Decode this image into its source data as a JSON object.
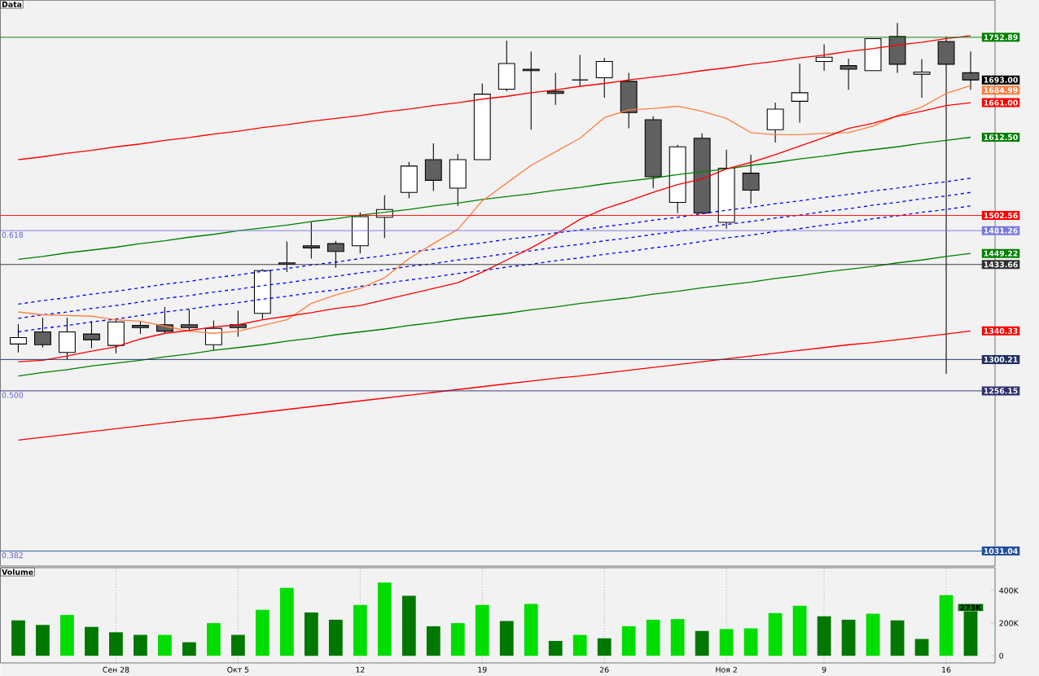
{
  "chart_data": [
    {
      "type": "candlestick",
      "title": "Data",
      "categories": [
        null,
        null,
        null,
        null,
        null,
        null,
        null,
        null,
        null,
        null,
        null,
        null,
        null,
        null,
        null,
        null,
        null,
        null,
        null,
        null,
        null,
        null,
        null,
        null,
        null,
        null,
        null,
        null,
        null,
        null,
        null,
        null,
        null,
        null,
        null,
        null,
        null,
        null,
        null,
        null
      ],
      "ohlc": [
        [
          1322,
          1350,
          1310,
          1331
        ],
        [
          1339,
          1359,
          1317,
          1321
        ],
        [
          1310,
          1359,
          1300,
          1339
        ],
        [
          1336,
          1354,
          1316,
          1328
        ],
        [
          1320,
          1357,
          1309,
          1353
        ],
        [
          1348,
          1354,
          1336,
          1345
        ],
        [
          1349,
          1374,
          1337,
          1340
        ],
        [
          1349,
          1370,
          1340,
          1345
        ],
        [
          1321,
          1355,
          1313,
          1344
        ],
        [
          1349,
          1369,
          1332,
          1345
        ],
        [
          1365,
          1427,
          1357,
          1425
        ],
        [
          1436,
          1466,
          1423,
          1434
        ],
        [
          1460,
          1493,
          1442,
          1457
        ],
        [
          1463,
          1467,
          1429,
          1452
        ],
        [
          1460,
          1507,
          1449,
          1501
        ],
        [
          1500,
          1531,
          1471,
          1511
        ],
        [
          1535,
          1578,
          1527,
          1572
        ],
        [
          1581,
          1604,
          1537,
          1552
        ],
        [
          1541,
          1589,
          1516,
          1581
        ],
        [
          1581,
          1688,
          1581,
          1673
        ],
        [
          1680,
          1748,
          1677,
          1716
        ],
        [
          1708,
          1733,
          1623,
          1706
        ],
        [
          1677,
          1703,
          1658,
          1674
        ],
        [
          1693,
          1728,
          1684,
          1693
        ],
        [
          1696,
          1724,
          1668,
          1719
        ],
        [
          1691,
          1703,
          1625,
          1647
        ],
        [
          1637,
          1642,
          1541,
          1557
        ],
        [
          1521,
          1602,
          1506,
          1599
        ],
        [
          1611,
          1618,
          1505,
          1506
        ],
        [
          1493,
          1595,
          1484,
          1569
        ],
        [
          1562,
          1588,
          1519,
          1538
        ],
        [
          1623,
          1661,
          1605,
          1652
        ],
        [
          1663,
          1716,
          1633,
          1675
        ],
        [
          1719,
          1743,
          1706,
          1725
        ],
        [
          1713,
          1723,
          1679,
          1708
        ],
        [
          1706,
          1751,
          1706,
          1751
        ],
        [
          1754,
          1773,
          1703,
          1715
        ],
        [
          1701,
          1722,
          1668,
          1704
        ],
        [
          1747,
          1754,
          1280,
          1715
        ],
        [
          1703,
          1733,
          1679,
          1693.0
        ]
      ],
      "ylim": [
        1010,
        1805
      ],
      "value_labels": [
        null,
        null,
        null,
        null,
        null,
        null,
        null,
        null,
        null,
        null,
        null,
        null,
        null,
        null,
        null,
        null,
        null,
        null,
        null,
        null,
        null,
        null,
        null,
        null,
        null,
        null,
        null,
        null,
        null,
        null,
        null,
        null,
        null,
        null,
        null,
        null,
        null,
        null,
        null,
        "1693.00"
      ],
      "series": [
        {
          "type": "line",
          "color": "#ff0000",
          "line_style": "solid",
          "values": [
            1581,
            1585,
            1590,
            1594,
            1599,
            1603,
            1608,
            1612,
            1617,
            1621,
            1626,
            1630,
            1635,
            1639,
            1643,
            1648,
            1652,
            1657,
            1661,
            1666,
            1670,
            1675,
            1679,
            1684,
            1688,
            1693,
            1697,
            1701,
            1706,
            1710,
            1715,
            1719,
            1724,
            1728,
            1733,
            1737,
            1742,
            1746,
            1751,
            1755
          ]
        },
        {
          "type": "line",
          "color": "#008000",
          "line_style": "solid",
          "values": [
            1441,
            1445,
            1450,
            1454,
            1458,
            1463,
            1467,
            1472,
            1476,
            1481,
            1485,
            1489,
            1494,
            1498,
            1503,
            1507,
            1511,
            1516,
            1520,
            1525,
            1529,
            1533,
            1538,
            1542,
            1547,
            1551,
            1555,
            1560,
            1564,
            1568,
            1573,
            1577,
            1582,
            1586,
            1591,
            1595,
            1599,
            1604,
            1608,
            1612.5
          ],
          "value_labels": [
            null,
            null,
            null,
            null,
            null,
            null,
            null,
            null,
            null,
            null,
            null,
            null,
            null,
            null,
            null,
            null,
            null,
            null,
            null,
            null,
            null,
            null,
            null,
            null,
            null,
            null,
            null,
            null,
            null,
            null,
            null,
            null,
            null,
            null,
            null,
            null,
            null,
            null,
            null,
            "1612.50"
          ]
        },
        {
          "type": "line",
          "color": "#008000",
          "line_style": "solid",
          "values": [
            1277,
            1282,
            1286,
            1291,
            1295,
            1299,
            1304,
            1308,
            1313,
            1317,
            1321,
            1326,
            1330,
            1335,
            1339,
            1343,
            1348,
            1352,
            1357,
            1361,
            1365,
            1370,
            1374,
            1379,
            1383,
            1387,
            1392,
            1396,
            1401,
            1405,
            1409,
            1414,
            1418,
            1423,
            1427,
            1431,
            1436,
            1440,
            1445,
            1449.22
          ],
          "value_labels": [
            null,
            null,
            null,
            null,
            null,
            null,
            null,
            null,
            null,
            null,
            null,
            null,
            null,
            null,
            null,
            null,
            null,
            null,
            null,
            null,
            null,
            null,
            null,
            null,
            null,
            null,
            null,
            null,
            null,
            null,
            null,
            null,
            null,
            null,
            null,
            null,
            null,
            null,
            null,
            "1449.22"
          ]
        },
        {
          "type": "line",
          "color": "#ff0000",
          "line_style": "solid",
          "values": [
            1187,
            1191,
            1195,
            1199,
            1203,
            1207,
            1211,
            1215,
            1218,
            1222,
            1226,
            1230,
            1234,
            1238,
            1242,
            1246,
            1250,
            1254,
            1258,
            1262,
            1266,
            1270,
            1274,
            1277,
            1281,
            1285,
            1289,
            1293,
            1297,
            1301,
            1305,
            1309,
            1313,
            1317,
            1321,
            1324,
            1328,
            1332,
            1336,
            1340.33
          ],
          "value_labels": [
            null,
            null,
            null,
            null,
            null,
            null,
            null,
            null,
            null,
            null,
            null,
            null,
            null,
            null,
            null,
            null,
            null,
            null,
            null,
            null,
            null,
            null,
            null,
            null,
            null,
            null,
            null,
            null,
            null,
            null,
            null,
            null,
            null,
            null,
            null,
            null,
            null,
            null,
            null,
            "1340.33"
          ]
        },
        {
          "type": "line",
          "color": "#0000ff",
          "line_style": "dashed",
          "values": [
            1378,
            1383,
            1387,
            1392,
            1396,
            1401,
            1406,
            1410,
            1415,
            1419,
            1424,
            1428,
            1433,
            1437,
            1442,
            1446,
            1451,
            1455,
            1460,
            1464,
            1469,
            1473,
            1478,
            1482,
            1487,
            1491,
            1496,
            1500,
            1505,
            1510,
            1514,
            1519,
            1523,
            1528,
            1532,
            1537,
            1541,
            1546,
            1550,
            1555
          ]
        },
        {
          "type": "line",
          "color": "#0000ff",
          "line_style": "dashed",
          "values": [
            1358,
            1363,
            1367,
            1372,
            1376,
            1381,
            1386,
            1390,
            1395,
            1399,
            1404,
            1408,
            1413,
            1417,
            1422,
            1426,
            1431,
            1435,
            1440,
            1444,
            1449,
            1453,
            1458,
            1462,
            1467,
            1471,
            1476,
            1480,
            1485,
            1490,
            1494,
            1499,
            1503,
            1508,
            1512,
            1517,
            1521,
            1526,
            1530,
            1535
          ]
        },
        {
          "type": "line",
          "color": "#0000ff",
          "line_style": "dashed",
          "values": [
            1339,
            1344,
            1348,
            1353,
            1357,
            1362,
            1367,
            1371,
            1376,
            1380,
            1385,
            1389,
            1394,
            1398,
            1403,
            1407,
            1412,
            1416,
            1421,
            1425,
            1430,
            1434,
            1439,
            1443,
            1448,
            1452,
            1457,
            1461,
            1466,
            1471,
            1475,
            1480,
            1484,
            1489,
            1493,
            1498,
            1502,
            1507,
            1511,
            1516
          ]
        },
        {
          "type": "line",
          "color": "#ff7f40",
          "line_style": "solid",
          "values": [
            1367,
            1363,
            1362,
            1361,
            1356,
            1354,
            1347,
            1340,
            1337,
            1340,
            1348,
            1356,
            1379,
            1391,
            1400,
            1415,
            1442,
            1463,
            1483,
            1523,
            1548,
            1573,
            1592,
            1611,
            1640,
            1651,
            1653,
            1656,
            1649,
            1639,
            1619,
            1616,
            1616,
            1618,
            1619,
            1628,
            1643,
            1655,
            1674,
            1684.99
          ],
          "value_labels": [
            null,
            null,
            null,
            null,
            null,
            null,
            null,
            null,
            null,
            null,
            null,
            null,
            null,
            null,
            null,
            null,
            null,
            null,
            null,
            null,
            null,
            null,
            null,
            null,
            null,
            null,
            null,
            null,
            null,
            null,
            null,
            null,
            null,
            null,
            null,
            null,
            null,
            null,
            null,
            "1684.99"
          ]
        },
        {
          "type": "line",
          "color": "#ff0000",
          "line_style": "solid",
          "values": [
            1297,
            1299,
            1305,
            1312,
            1318,
            1329,
            1337,
            1341,
            1346,
            1349,
            1356,
            1361,
            1366,
            1372,
            1376,
            1384,
            1392,
            1400,
            1408,
            1423,
            1440,
            1457,
            1476,
            1497,
            1512,
            1523,
            1535,
            1546,
            1554,
            1568,
            1577,
            1588,
            1600,
            1612,
            1625,
            1632,
            1642,
            1649,
            1657,
            1661.0
          ],
          "value_labels": [
            null,
            null,
            null,
            null,
            null,
            null,
            null,
            null,
            null,
            null,
            null,
            null,
            null,
            null,
            null,
            null,
            null,
            null,
            null,
            null,
            null,
            null,
            null,
            null,
            null,
            null,
            null,
            null,
            null,
            null,
            null,
            null,
            null,
            null,
            null,
            null,
            null,
            null,
            null,
            "1661.00"
          ]
        }
      ],
      "ref_lines": [
        {
          "axis": "y",
          "value": 1752.89,
          "label": "1752.89",
          "color": "#008000"
        },
        {
          "axis": "y",
          "value": 1502.56,
          "label": "1502.56",
          "color": "#ff0000"
        },
        {
          "axis": "y",
          "value": 1481.26,
          "label": "1481.26",
          "color": "#7878e0"
        },
        {
          "axis": "y",
          "value": 1433.66,
          "label": "1433.66",
          "color": "#303030"
        },
        {
          "axis": "y",
          "value": 1300.21,
          "label": "1300.21",
          "color": "#203060"
        },
        {
          "axis": "y",
          "value": 1256.15,
          "label": "1256.15",
          "color": "#303070"
        },
        {
          "axis": "y",
          "value": 1031.04,
          "label": "1031.04",
          "color": "#2050a0"
        }
      ],
      "annotations": [
        {
          "text": "0.618",
          "y": 1481.26
        },
        {
          "text": "0.500",
          "y": 1256.15
        },
        {
          "text": "0.382",
          "y": 1031.04
        }
      ]
    },
    {
      "type": "bar",
      "title": "Volume",
      "categories": [
        null,
        null,
        null,
        null,
        "Сен 28",
        null,
        null,
        null,
        null,
        "Окт 5",
        null,
        null,
        null,
        null,
        "12",
        null,
        null,
        null,
        null,
        "19",
        null,
        null,
        null,
        null,
        "26",
        null,
        null,
        null,
        null,
        "Ноя 2",
        null,
        null,
        null,
        "9",
        null,
        null,
        null,
        null,
        "16",
        null
      ],
      "values": [
        217,
        189,
        250,
        177,
        144,
        128,
        128,
        83,
        200,
        128,
        282,
        417,
        266,
        221,
        311,
        449,
        368,
        181,
        200,
        311,
        213,
        318,
        91,
        128,
        107,
        181,
        221,
        225,
        152,
        164,
        168,
        262,
        306,
        242,
        221,
        258,
        217,
        103,
        372,
        273
      ],
      "colors": [
        "#007800",
        "#007800",
        "#00dd00",
        "#007800",
        "#007800",
        "#007800",
        "#00dd00",
        "#007800",
        "#00dd00",
        "#007800",
        "#00dd00",
        "#00dd00",
        "#007800",
        "#007800",
        "#00dd00",
        "#00dd00",
        "#007800",
        "#007800",
        "#00dd00",
        "#00dd00",
        "#007800",
        "#00dd00",
        "#007800",
        "#00dd00",
        "#007800",
        "#00dd00",
        "#00dd00",
        "#00dd00",
        "#007800",
        "#00dd00",
        "#00dd00",
        "#00dd00",
        "#00dd00",
        "#007800",
        "#007800",
        "#00dd00",
        "#007800",
        "#007800",
        "#00dd00",
        "#007800"
      ],
      "ylim": [
        -44,
        540
      ],
      "yticks": [
        0,
        {
          "value": 200,
          "label": "200K"
        },
        {
          "value": 400,
          "label": "400K"
        }
      ],
      "grid": "x",
      "value_labels": [
        null,
        null,
        null,
        null,
        null,
        null,
        null,
        null,
        null,
        null,
        null,
        null,
        null,
        null,
        null,
        null,
        null,
        null,
        null,
        null,
        null,
        null,
        null,
        null,
        null,
        null,
        null,
        null,
        null,
        null,
        null,
        null,
        null,
        null,
        null,
        null,
        null,
        null,
        null,
        "273K"
      ]
    }
  ]
}
